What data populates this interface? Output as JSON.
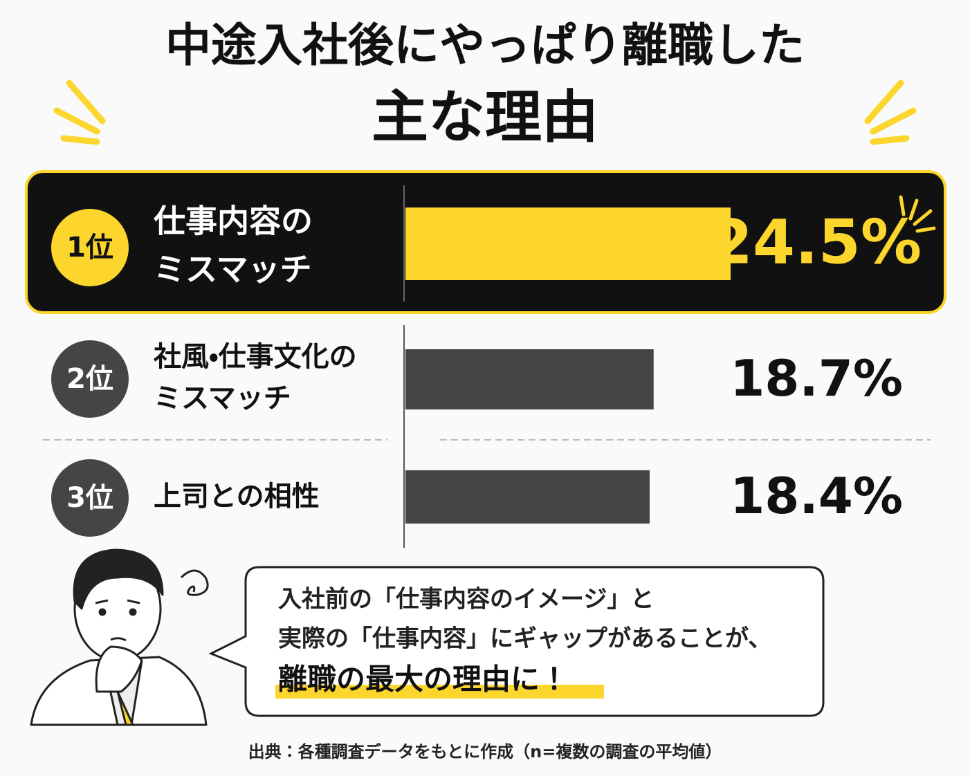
{
  "chart_data": {
    "type": "bar",
    "orientation": "horizontal",
    "title": "中途入社後にやっぱり離職した",
    "subtitle": "主な理由",
    "ranks": [
      "1位",
      "2位",
      "3位"
    ],
    "categories": [
      [
        "仕事内容の",
        "ミスマッチ"
      ],
      [
        "社風・仕事文化の",
        "ミスマッチ"
      ],
      [
        "上司との相性"
      ]
    ],
    "values": [
      24.5,
      18.7,
      18.4
    ],
    "value_labels": [
      "24.5%",
      "18.7%",
      "18.4%"
    ],
    "colors": [
      "#fcd62d",
      "#454545",
      "#454545"
    ],
    "callout": {
      "lines": [
        "入社前の「仕事内容のイメージ」と",
        "実際の「仕事内容」にギャップがあることが、"
      ],
      "emphasis": "離職の最大の理由に！"
    },
    "source": "出典：各種調査データをもとに作成（n=複数の調査の平均値）"
  }
}
